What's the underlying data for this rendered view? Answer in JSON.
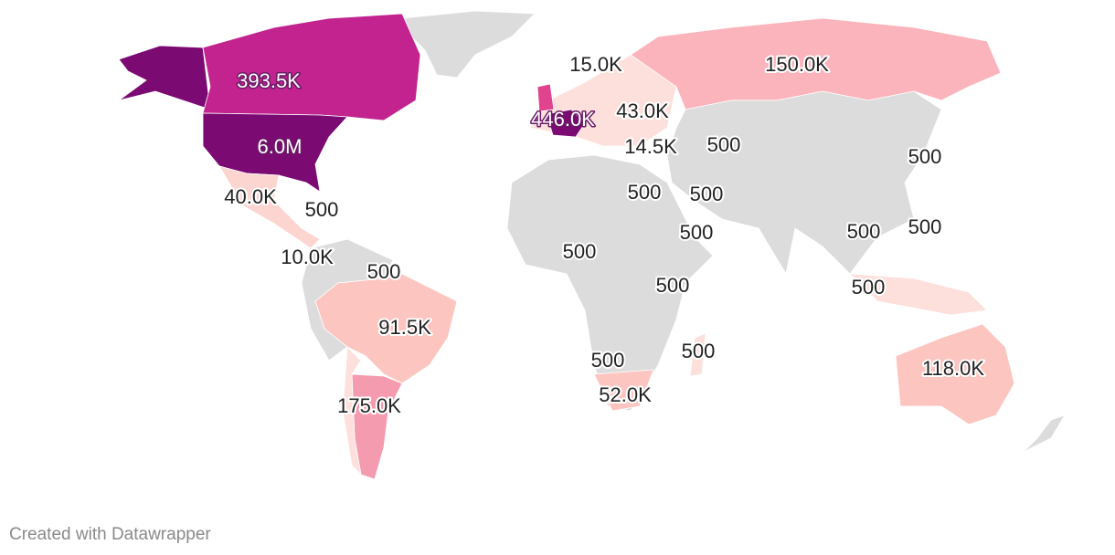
{
  "map": {
    "labels": [
      "393.5K",
      "6.0M",
      "446.0K",
      "15.0K",
      "150.0K",
      "43.0K",
      "14.5K",
      "500",
      "500",
      "40.0K",
      "500",
      "500",
      "500",
      "500",
      "500",
      "500",
      "10.0K",
      "500",
      "500",
      "500",
      "500",
      "91.5K",
      "500",
      "500",
      "118.0K",
      "175.0K",
      "52.0K"
    ]
  },
  "footer": "Created with Datawrapper"
}
